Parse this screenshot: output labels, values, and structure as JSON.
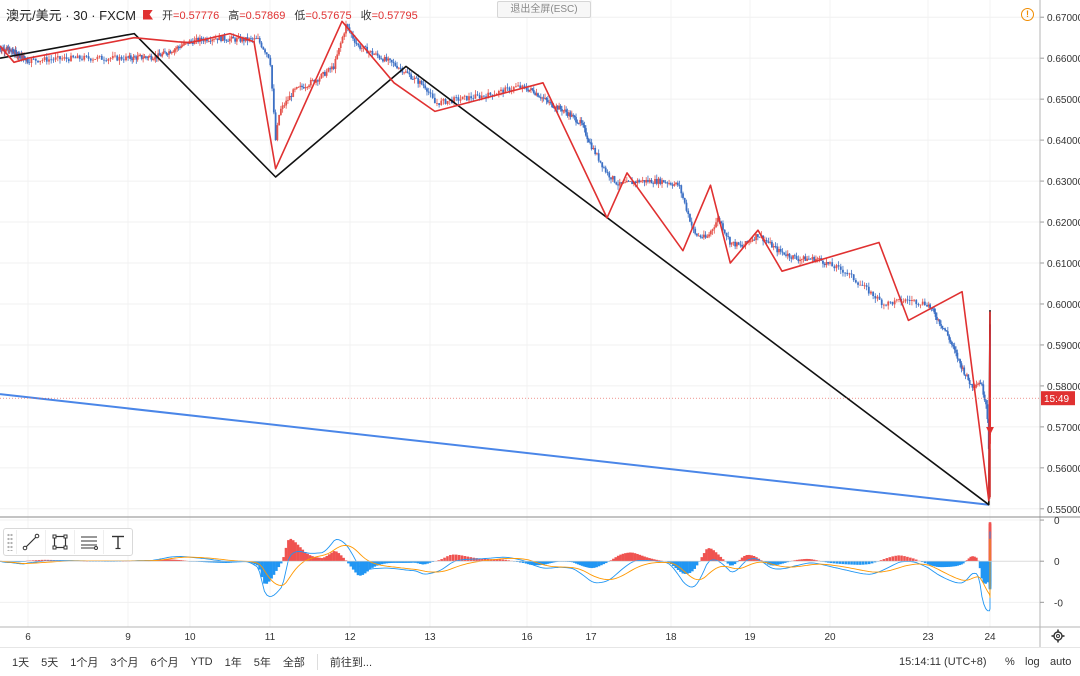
{
  "symbol": {
    "name": "澳元/美元 · 30 · FXCM",
    "ohlc": [
      {
        "label": "开",
        "value": "=0.57776"
      },
      {
        "label": "高",
        "value": "=0.57869"
      },
      {
        "label": "低",
        "value": "=0.57675"
      },
      {
        "label": "收",
        "value": "=0.57795"
      }
    ]
  },
  "esc_label": "退出全屏(ESC)",
  "alert_glyph": "!",
  "chart_data": [
    {
      "type": "line",
      "description_of_series": "AUD/USD 30-min candlesticks shown as close path with zigzag annotations",
      "x_axis": {
        "ticks": [
          "6",
          "9",
          "10",
          "11",
          "12",
          "13",
          "16",
          "17",
          "18",
          "19",
          "20",
          "23",
          "24"
        ],
        "tick_x": [
          6,
          9,
          10,
          11,
          12,
          13,
          16,
          17,
          18,
          19,
          20,
          23,
          24
        ]
      },
      "y_axis": {
        "ticks": [
          "0.67000",
          "0.66000",
          "0.65000",
          "0.64000",
          "0.63000",
          "0.62000",
          "0.61000",
          "0.60000",
          "0.59000",
          "0.58000",
          "0.57000",
          "0.56000",
          "0.55000"
        ],
        "ylim": [
          0.548,
          0.6742
        ]
      },
      "price_path": [
        [
          5.0,
          0.6625
        ],
        [
          5.5,
          0.6615
        ],
        [
          6.0,
          0.6595
        ],
        [
          6.5,
          0.66
        ],
        [
          7.0,
          0.66
        ],
        [
          7.5,
          0.6605
        ],
        [
          8.0,
          0.664
        ],
        [
          8.3,
          0.665
        ],
        [
          8.6,
          0.6645
        ],
        [
          8.85,
          0.6645
        ],
        [
          9.0,
          0.66
        ],
        [
          9.07,
          0.64
        ],
        [
          9.12,
          0.647
        ],
        [
          9.3,
          0.652
        ],
        [
          9.6,
          0.655
        ],
        [
          9.8,
          0.658
        ],
        [
          9.95,
          0.668
        ],
        [
          10.1,
          0.663
        ],
        [
          10.3,
          0.661
        ],
        [
          10.6,
          0.658
        ],
        [
          10.8,
          0.655
        ],
        [
          10.95,
          0.653
        ],
        [
          11.05,
          0.649
        ],
        [
          11.3,
          0.65
        ],
        [
          11.6,
          0.651
        ],
        [
          11.9,
          0.653
        ],
        [
          12.1,
          0.652
        ],
        [
          12.35,
          0.649
        ],
        [
          12.6,
          0.647
        ],
        [
          12.85,
          0.644
        ],
        [
          13.05,
          0.637
        ],
        [
          13.2,
          0.632
        ],
        [
          13.35,
          0.629
        ],
        [
          13.6,
          0.63
        ],
        [
          13.9,
          0.63
        ],
        [
          14.1,
          0.629
        ],
        [
          14.3,
          0.617
        ],
        [
          14.45,
          0.616
        ],
        [
          14.6,
          0.621
        ],
        [
          14.75,
          0.615
        ],
        [
          14.9,
          0.614
        ],
        [
          15.1,
          0.617
        ],
        [
          15.35,
          0.613
        ],
        [
          15.6,
          0.611
        ],
        [
          15.85,
          0.611
        ],
        [
          16.15,
          0.608
        ],
        [
          16.35,
          0.604
        ],
        [
          16.55,
          0.6
        ],
        [
          16.8,
          0.601
        ],
        [
          17.0,
          0.6
        ],
        [
          17.3,
          0.593
        ],
        [
          17.5,
          0.586
        ],
        [
          17.7,
          0.58
        ],
        [
          17.85,
          0.581
        ],
        [
          17.95,
          0.575
        ],
        [
          18.02,
          0.552
        ],
        [
          18.1,
          0.556
        ],
        [
          18.3,
          0.57
        ],
        [
          18.55,
          0.576
        ],
        [
          18.75,
          0.587
        ],
        [
          18.95,
          0.577
        ],
        [
          19.05,
          0.568
        ],
        [
          19.2,
          0.578
        ],
        [
          19.4,
          0.587
        ],
        [
          19.6,
          0.595
        ],
        [
          19.8,
          0.59
        ],
        [
          19.95,
          0.584
        ],
        [
          20.15,
          0.579
        ],
        [
          20.3,
          0.573
        ],
        [
          20.5,
          0.574
        ],
        [
          20.7,
          0.576
        ],
        [
          20.8,
          0.577
        ]
      ],
      "zigzag_small": {
        "color": "#e03131",
        "points": [
          [
            5.0,
            0.663
          ],
          [
            5.5,
            0.659
          ],
          [
            6.0,
            0.66
          ],
          [
            7.1,
            0.665
          ],
          [
            7.8,
            0.664
          ],
          [
            8.0,
            0.6638
          ],
          [
            8.5,
            0.666
          ],
          [
            8.8,
            0.664
          ],
          [
            9.07,
            0.633
          ],
          [
            9.9,
            0.669
          ],
          [
            10.55,
            0.654
          ],
          [
            11.05,
            0.647
          ],
          [
            12.25,
            0.654
          ],
          [
            13.2,
            0.621
          ],
          [
            13.45,
            0.632
          ],
          [
            14.15,
            0.613
          ],
          [
            14.5,
            0.629
          ],
          [
            14.75,
            0.61
          ],
          [
            15.1,
            0.618
          ],
          [
            15.4,
            0.608
          ],
          [
            16.5,
            0.615
          ],
          [
            16.8,
            0.596
          ],
          [
            17.55,
            0.603
          ],
          [
            17.98,
            0.552
          ],
          [
            18.55,
            0.596
          ],
          [
            19.1,
            0.566
          ],
          [
            19.55,
            0.598
          ],
          [
            20.05,
            0.571
          ],
          [
            20.35,
            0.57
          ],
          [
            20.7,
            0.581
          ]
        ]
      },
      "zigzag_large": {
        "color": "#111111",
        "points": [
          [
            5.0,
            0.66
          ],
          [
            7.1,
            0.666
          ],
          [
            9.07,
            0.631
          ],
          [
            10.7,
            0.658
          ],
          [
            17.98,
            0.551
          ],
          [
            19.55,
            0.5985
          ]
        ]
      },
      "trendline": {
        "color": "#4a86e8",
        "from": [
          5.0,
          0.578
        ],
        "to": [
          17.98,
          0.551
        ]
      },
      "forecast_arrow": {
        "color": "#e03131",
        "from": [
          20.85,
          0.579
        ],
        "to": [
          21.2,
          0.568
        ]
      },
      "last_price_label": "15:49"
    },
    {
      "type": "line",
      "description_of_series": "MACD oscillator pane",
      "y_axis": {
        "ticks": [
          "0",
          "0",
          "-0"
        ],
        "ylim": [
          -1.6,
          1.05
        ]
      },
      "note": "histogram bars red above zero, blue below zero; two signal lines orange and blue"
    }
  ],
  "toolbar": {
    "tools": [
      {
        "name": "trend-line-tool-icon"
      },
      {
        "name": "rectangle-tool-icon"
      },
      {
        "name": "fib-tool-icon"
      },
      {
        "name": "text-tool-icon"
      }
    ]
  },
  "bottom": {
    "ranges": [
      "1天",
      "5天",
      "1个月",
      "3个月",
      "6个月",
      "YTD",
      "1年",
      "5年",
      "全部"
    ],
    "goto": "前往到...",
    "clock": "15:14:11 (UTC+8)",
    "pct": "%",
    "log": "log",
    "auto": "auto"
  }
}
